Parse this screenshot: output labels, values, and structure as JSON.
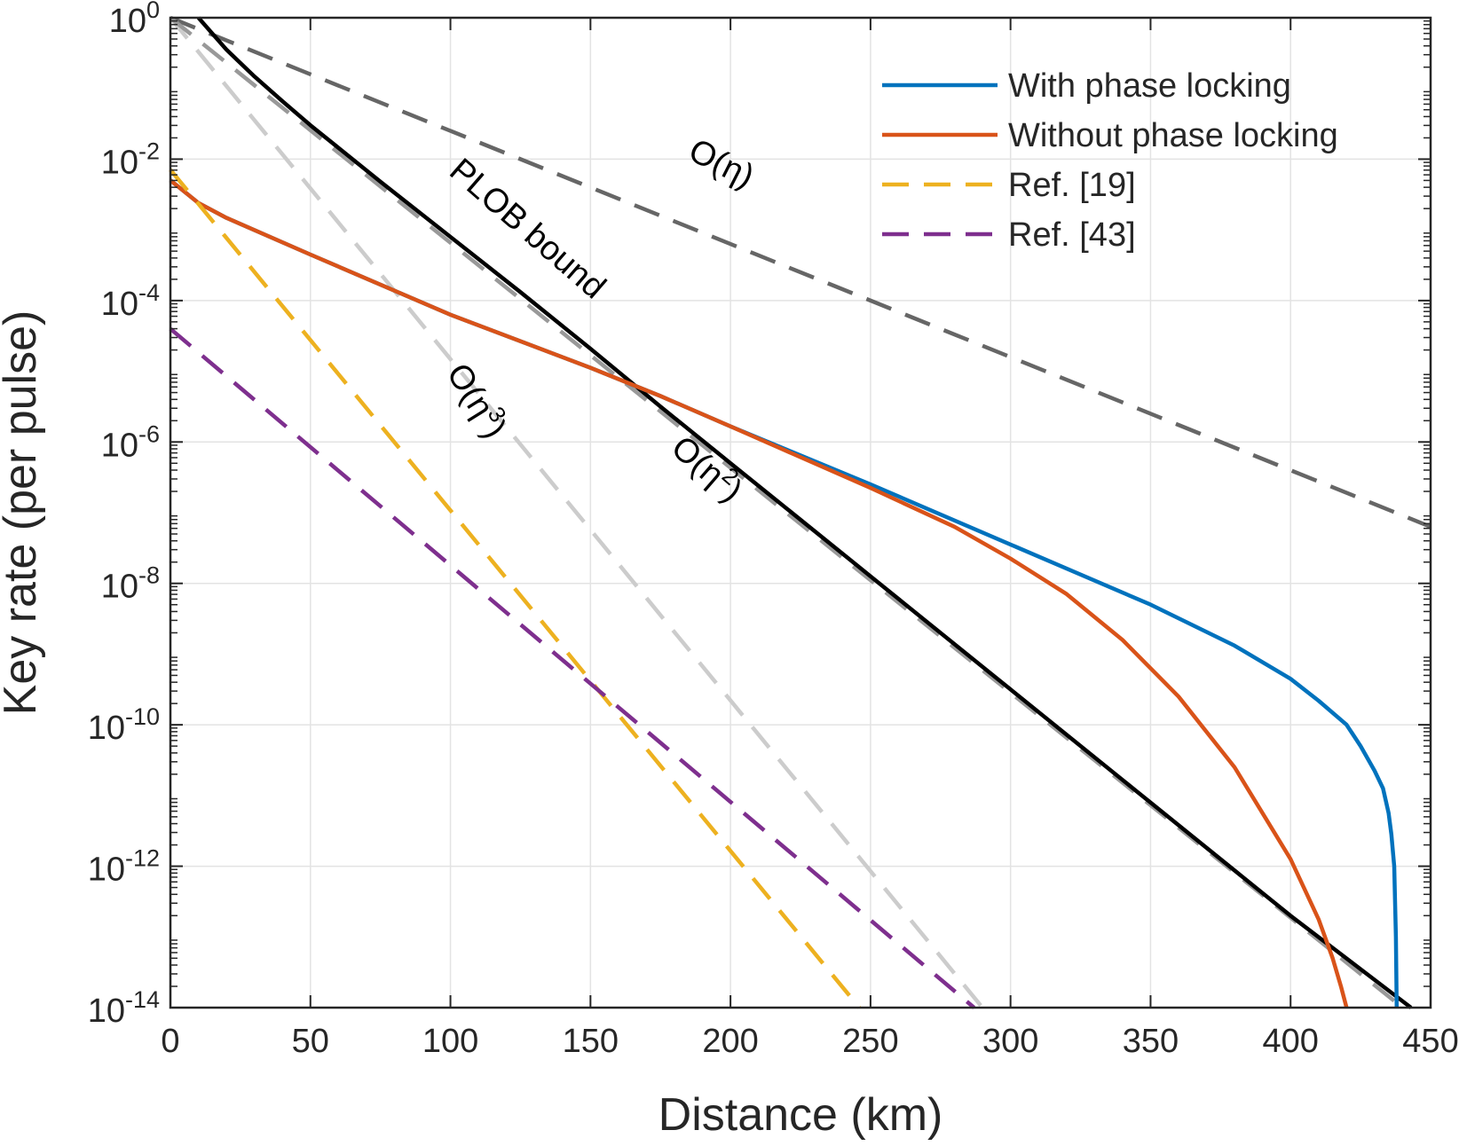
{
  "chart_data": {
    "type": "line",
    "xlabel": "Distance (km)",
    "ylabel": "Key rate (per pulse)",
    "xlim": [
      0,
      450
    ],
    "ylim_log10": [
      -14,
      0
    ],
    "yscale": "log",
    "grid": true,
    "legend_position": "top-right",
    "xticks": [
      {
        "value": 0,
        "label": "0"
      },
      {
        "value": 50,
        "label": "50"
      },
      {
        "value": 100,
        "label": "100"
      },
      {
        "value": 150,
        "label": "150"
      },
      {
        "value": 200,
        "label": "200"
      },
      {
        "value": 250,
        "label": "250"
      },
      {
        "value": 300,
        "label": "300"
      },
      {
        "value": 350,
        "label": "350"
      },
      {
        "value": 400,
        "label": "400"
      },
      {
        "value": 450,
        "label": "450"
      }
    ],
    "yticks": [
      {
        "exp": 0,
        "base": "10",
        "sup": "0"
      },
      {
        "exp": -2,
        "base": "10",
        "sup": "-2"
      },
      {
        "exp": -4,
        "base": "10",
        "sup": "-4"
      },
      {
        "exp": -6,
        "base": "10",
        "sup": "-6"
      },
      {
        "exp": -8,
        "base": "10",
        "sup": "-8"
      },
      {
        "exp": -10,
        "base": "10",
        "sup": "-10"
      },
      {
        "exp": -12,
        "base": "10",
        "sup": "-12"
      },
      {
        "exp": -14,
        "base": "10",
        "sup": "-14"
      }
    ],
    "series": [
      {
        "id": "o-eta",
        "name": "O(η)",
        "in_legend": false,
        "color": "#666666",
        "dash": true,
        "x": [
          0,
          450
        ],
        "log10_y": [
          0,
          -7.2
        ]
      },
      {
        "id": "o-eta3",
        "name": "O(η³)",
        "in_legend": false,
        "color": "#cccccc",
        "dash": true,
        "x": [
          0,
          290
        ],
        "log10_y": [
          0,
          -14
        ]
      },
      {
        "id": "o-eta2",
        "name": "O(η²)",
        "in_legend": false,
        "color": "#999999",
        "dash": true,
        "x": [
          0,
          440
        ],
        "log10_y": [
          0,
          -14
        ]
      },
      {
        "id": "plob",
        "name": "PLOB bound",
        "in_legend": false,
        "color": "#000000",
        "dash": false,
        "x": [
          10,
          20,
          30,
          40,
          50,
          75,
          100,
          125,
          150,
          175,
          200,
          250,
          300,
          350,
          400,
          443
        ],
        "log10_y": [
          0,
          -0.45,
          -0.83,
          -1.18,
          -1.52,
          -2.32,
          -3.1,
          -3.88,
          -4.68,
          -5.5,
          -6.3,
          -7.9,
          -9.5,
          -11.1,
          -12.7,
          -14
        ]
      },
      {
        "id": "with-pl",
        "name": "With phase locking",
        "in_legend": true,
        "color": "#0072BD",
        "dash": false,
        "x": [
          0,
          10,
          20,
          50,
          100,
          150,
          175,
          200,
          250,
          300,
          350,
          380,
          400,
          410,
          420,
          425,
          430,
          433,
          435,
          436,
          437,
          437.6,
          437.9
        ],
        "log10_y": [
          -2.3,
          -2.62,
          -2.83,
          -3.35,
          -4.2,
          -4.95,
          -5.35,
          -5.78,
          -6.6,
          -7.45,
          -8.3,
          -8.88,
          -9.35,
          -9.66,
          -10.0,
          -10.3,
          -10.65,
          -10.9,
          -11.25,
          -11.55,
          -12.0,
          -13.0,
          -14
        ]
      },
      {
        "id": "without-pl",
        "name": "Without phase locking",
        "in_legend": true,
        "color": "#D95319",
        "dash": false,
        "x": [
          0,
          10,
          20,
          50,
          100,
          150,
          175,
          200,
          250,
          280,
          300,
          320,
          340,
          360,
          380,
          400,
          410,
          415,
          418,
          420
        ],
        "log10_y": [
          -2.3,
          -2.62,
          -2.83,
          -3.35,
          -4.2,
          -4.95,
          -5.35,
          -5.78,
          -6.65,
          -7.2,
          -7.65,
          -8.15,
          -8.8,
          -9.6,
          -10.6,
          -11.9,
          -12.75,
          -13.3,
          -13.7,
          -14
        ]
      },
      {
        "id": "ref19",
        "name": "Ref. [19]",
        "in_legend": true,
        "color": "#EDB120",
        "dash": true,
        "x": [
          0,
          246
        ],
        "log10_y": [
          -2.15,
          -14
        ]
      },
      {
        "id": "ref43",
        "name": "Ref. [43]",
        "in_legend": true,
        "color": "#7E2F8E",
        "dash": true,
        "x": [
          0,
          287
        ],
        "log10_y": [
          -4.4,
          -14
        ]
      }
    ],
    "annotations": [
      {
        "id": "o-eta",
        "prefix": "O(",
        "greek": "η",
        "sup": "",
        "suffix": ")",
        "x": 195,
        "log10_y": -2.2,
        "angle_deg": 27
      },
      {
        "id": "plob",
        "text": "PLOB bound",
        "x": 125,
        "log10_y": -3.1,
        "angle_deg": 41
      },
      {
        "id": "o-eta3",
        "prefix": "O(",
        "greek": "η",
        "sup": "3",
        "suffix": ")",
        "x": 106,
        "log10_y": -5.5,
        "angle_deg": 58
      },
      {
        "id": "o-eta2",
        "prefix": "O(",
        "greek": "η",
        "sup": "2",
        "suffix": ")",
        "x": 189,
        "log10_y": -6.5,
        "angle_deg": 41
      }
    ]
  }
}
